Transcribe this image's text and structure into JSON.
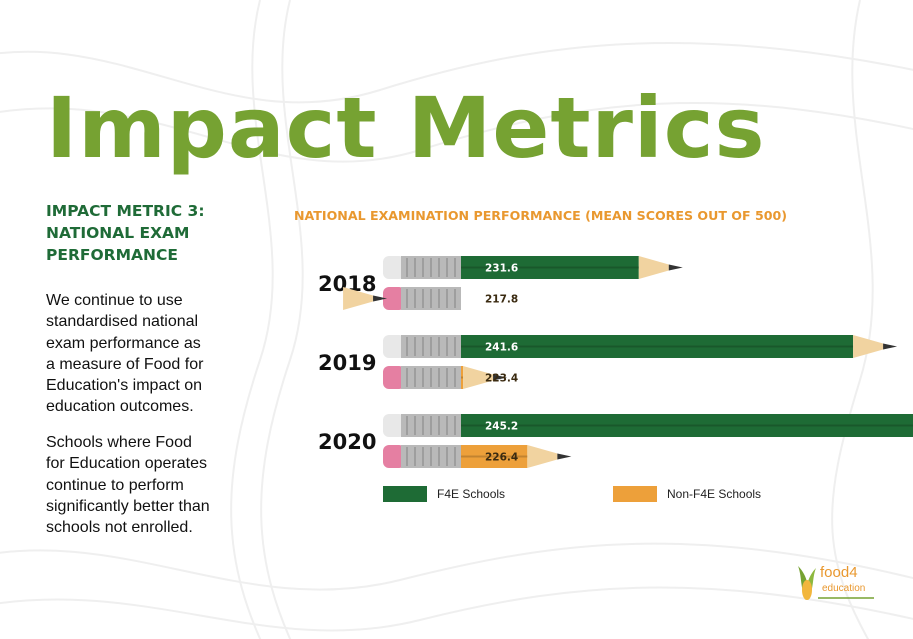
{
  "page": {
    "title": "Impact Metrics",
    "heading_lines": [
      "IMPACT METRIC 3:",
      "NATIONAL EXAM",
      "PERFORMANCE"
    ],
    "paragraph1_lines": [
      "We continue to use",
      "standardised national",
      "exam performance as",
      "a measure of Food for",
      "Education's impact on",
      "education outcomes."
    ],
    "paragraph2_lines": [
      "Schools where Food",
      "for Education operates",
      "continue to perform",
      "significantly better than",
      "schools not enrolled."
    ],
    "logo": {
      "main": "food",
      "number": "4",
      "sub": "education"
    }
  },
  "colors": {
    "title_green": "#76a232",
    "heading_green": "#1f6b37",
    "f4e": "#1e6b35",
    "non_f4e": "#eda03a",
    "chart_title_orange": "#e9982f"
  },
  "chart_data": {
    "type": "bar",
    "orientation": "horizontal",
    "title": "NATIONAL EXAMINATION PERFORMANCE (MEAN SCORES OUT OF 500)",
    "categories": [
      "2018",
      "2019",
      "2020"
    ],
    "series": [
      {
        "name": "F4E Schools",
        "values": [
          231.6,
          241.6,
          245.2
        ],
        "color": "#1e6b35"
      },
      {
        "name": "Non-F4E Schools",
        "values": [
          217.8,
          223.4,
          226.4
        ],
        "color": "#eda03a"
      }
    ],
    "legend_position": "bottom",
    "grid": false,
    "mark_style": "pencil"
  }
}
